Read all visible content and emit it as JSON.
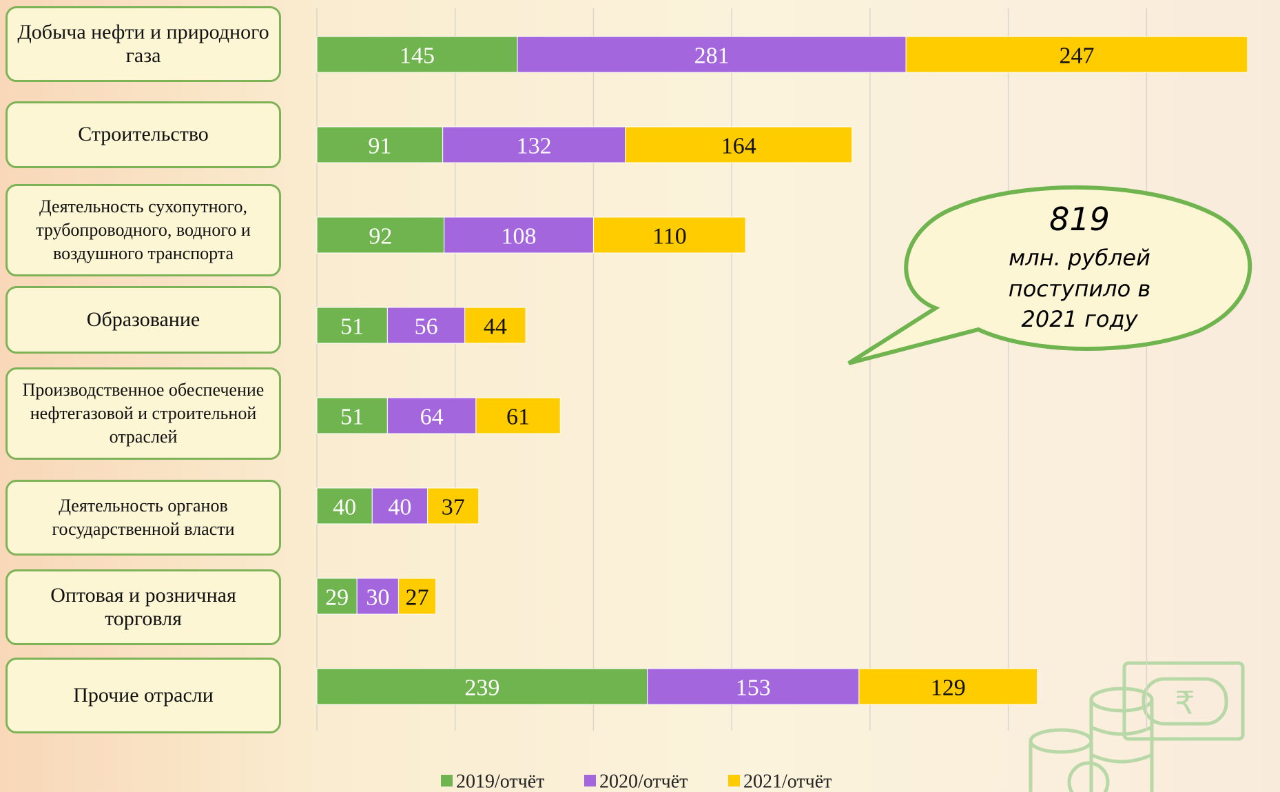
{
  "chart_data": {
    "type": "bar",
    "orientation": "horizontal",
    "stacked": true,
    "categories": [
      "Добыча нефти и природного газа",
      "Строительство",
      "Деятельность сухопутного, трубопроводного, водного и воздушного транспорта",
      "Образование",
      "Производственное обеспечение нефтегазовой и строительной отраслей",
      "Деятельность органов государственной власти",
      "Оптовая и розничная торговля",
      "Прочие отрасли"
    ],
    "series": [
      {
        "name": "2019/отчёт",
        "color": "#70b44f",
        "values": [
          145,
          91,
          92,
          51,
          51,
          40,
          29,
          239
        ]
      },
      {
        "name": "2020/отчёт",
        "color": "#a366dd",
        "values": [
          281,
          132,
          108,
          56,
          64,
          40,
          30,
          153
        ]
      },
      {
        "name": "2021/отчёт",
        "color": "#ffcc00",
        "values": [
          247,
          164,
          110,
          44,
          61,
          37,
          27,
          129
        ]
      }
    ],
    "xlim": [
      0,
      690
    ],
    "xticks": [
      0,
      100,
      200,
      300,
      400,
      500,
      600
    ],
    "grid": true,
    "legend": "bottom"
  },
  "callout": {
    "value": "819",
    "lines": [
      "млн. рублей",
      "поступило в",
      "2021 году"
    ]
  }
}
